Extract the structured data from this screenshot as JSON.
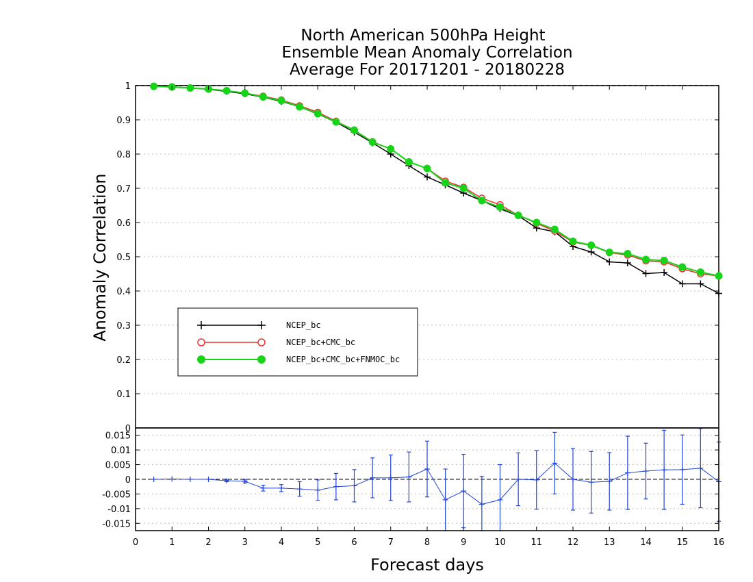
{
  "title_lines": [
    "North American 500hPa Height",
    "Ensemble Mean Anomaly Correlation",
    "Average For 20171201 - 20180228"
  ],
  "chart_data": [
    {
      "type": "line",
      "ylabel": "Anomaly Correlation",
      "xlim": [
        0,
        16
      ],
      "ylim": [
        0,
        1
      ],
      "yticks": [
        "0",
        "0.1",
        "0.2",
        "0.3",
        "0.4",
        "0.5",
        "0.6",
        "0.7",
        "0.8",
        "0.9",
        "1"
      ],
      "grid": true,
      "legend_position": "lower-left",
      "x": [
        0.5,
        1,
        1.5,
        2,
        2.5,
        3,
        3.5,
        4,
        4.5,
        5,
        5.5,
        6,
        6.5,
        7,
        7.5,
        8,
        8.5,
        9,
        9.5,
        10,
        10.5,
        11,
        11.5,
        12,
        12.5,
        13,
        13.5,
        14,
        14.5,
        15,
        15.5,
        16
      ],
      "series": [
        {
          "name": "NCEP_bc",
          "color": "#000000",
          "marker": "plus",
          "values": [
            0.998,
            0.996,
            0.993,
            0.989,
            0.983,
            0.976,
            0.966,
            0.954,
            0.938,
            0.917,
            0.893,
            0.864,
            0.833,
            0.8,
            0.766,
            0.733,
            0.71,
            0.686,
            0.664,
            0.64,
            0.62,
            0.584,
            0.573,
            0.53,
            0.514,
            0.485,
            0.482,
            0.451,
            0.454,
            0.421,
            0.421,
            0.393
          ]
        },
        {
          "name": "NCEP_bc+CMC_bc",
          "color": "#e83030",
          "marker": "circle-open",
          "values": [
            0.998,
            0.996,
            0.993,
            0.99,
            0.985,
            0.978,
            0.969,
            0.958,
            0.941,
            0.922,
            0.896,
            0.87,
            0.836,
            0.815,
            0.776,
            0.758,
            0.721,
            0.703,
            0.671,
            0.652,
            0.621,
            0.598,
            0.575,
            0.543,
            0.533,
            0.512,
            0.505,
            0.488,
            0.485,
            0.465,
            0.45,
            0.444
          ]
        },
        {
          "name": "NCEP_bc+CMC_bc+FNMOC_bc",
          "color": "#18d418",
          "marker": "circle-filled",
          "values": [
            0.998,
            0.996,
            0.993,
            0.99,
            0.985,
            0.978,
            0.967,
            0.956,
            0.938,
            0.918,
            0.894,
            0.87,
            0.835,
            0.815,
            0.777,
            0.758,
            0.716,
            0.7,
            0.664,
            0.645,
            0.621,
            0.6,
            0.58,
            0.545,
            0.534,
            0.513,
            0.509,
            0.492,
            0.489,
            0.47,
            0.455,
            0.444
          ]
        }
      ]
    },
    {
      "type": "line",
      "xlabel": "Forecast days",
      "xlim": [
        0,
        16
      ],
      "ylim": [
        -0.0175,
        0.0175
      ],
      "xticks": [
        "0",
        "1",
        "2",
        "3",
        "4",
        "5",
        "6",
        "7",
        "8",
        "9",
        "10",
        "11",
        "12",
        "13",
        "14",
        "15",
        "16"
      ],
      "yticks": [
        "-0.015",
        "-0.01",
        "-0.005",
        "0",
        "0.005",
        "0.01",
        "0.015"
      ],
      "grid": true,
      "series": [
        {
          "color": "#2244dd",
          "x": [
            0.5,
            1,
            1.5,
            2,
            2.5,
            3,
            3.5,
            4,
            4.5,
            5,
            5.5,
            6,
            6.5,
            7,
            7.5,
            8,
            8.5,
            9,
            9.5,
            10,
            10.5,
            11,
            11.5,
            12,
            12.5,
            13,
            13.5,
            14,
            14.5,
            15,
            15.5,
            16
          ],
          "values": [
            0,
            0.0001,
            0,
            0,
            -0.0005,
            -0.0007,
            -0.003,
            -0.003,
            -0.0033,
            -0.0037,
            -0.0025,
            -0.0022,
            0.0005,
            0.0005,
            0.0008,
            0.0035,
            -0.007,
            -0.004,
            -0.0085,
            -0.007,
            0,
            -0.0002,
            0.0055,
            0,
            -0.001,
            -0.0007,
            0.0022,
            0.0028,
            0.0032,
            0.0033,
            0.0038,
            -0.0008
          ],
          "error": [
            0,
            0,
            0,
            0,
            0.0003,
            0.0005,
            0.001,
            0.0012,
            0.0025,
            0.0035,
            0.0045,
            0.0055,
            0.0068,
            0.0078,
            0.0085,
            0.0095,
            0.0105,
            0.0125,
            0.0095,
            0.012,
            0.009,
            0.01,
            0.0105,
            0.0105,
            0.0105,
            0.0098,
            0.0125,
            0.0095,
            0.0135,
            0.0118,
            0.0135,
            0.0135
          ]
        }
      ]
    }
  ]
}
